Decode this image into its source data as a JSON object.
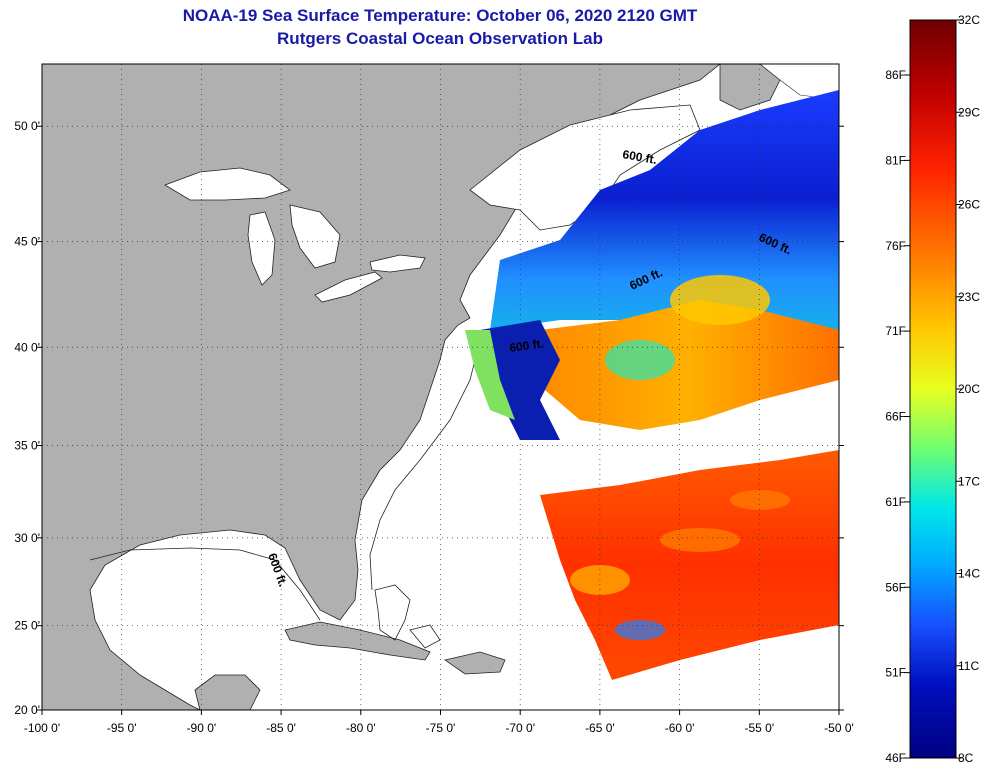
{
  "title": "NOAA-19 Sea Surface Temperature:  October 06, 2020 2120 GMT",
  "subtitle": "Rutgers Coastal Ocean Observation Lab",
  "map": {
    "lon_range": [
      -100,
      -50
    ],
    "lat_range": [
      20,
      52.5
    ],
    "lon_ticks": [
      "-100 0'",
      "-95 0'",
      "-90 0'",
      "-85 0'",
      "-80 0'",
      "-75 0'",
      "-70 0'",
      "-65 0'",
      "-60 0'",
      "-55 0'",
      "-50 0'"
    ],
    "lat_ticks": [
      "20 0'",
      "25 0'",
      "30 0'",
      "35 0'",
      "40 0'",
      "45 0'",
      "50 0'"
    ],
    "contour_labels": [
      "600 ft.",
      "600 ft.",
      "600 ft.",
      "600 ft.",
      "600 ft."
    ],
    "colors": {
      "land": "#b0b0b0",
      "water": "#ffffff",
      "grid": "#333333"
    }
  },
  "colorbar": {
    "fahrenheit_labels": [
      "86F",
      "81F",
      "76F",
      "71F",
      "66F",
      "61F",
      "56F",
      "51F",
      "46F"
    ],
    "celsius_labels": [
      "32C",
      "29C",
      "26C",
      "23C",
      "20C",
      "17C",
      "14C",
      "11C",
      "8C"
    ],
    "colors": [
      "#7a0000",
      "#c80000",
      "#ff2a00",
      "#ff7a00",
      "#ffc800",
      "#d8ff20",
      "#60ff80",
      "#00f0f0",
      "#00a0ff",
      "#1850ff",
      "#0010c8",
      "#000080"
    ]
  }
}
